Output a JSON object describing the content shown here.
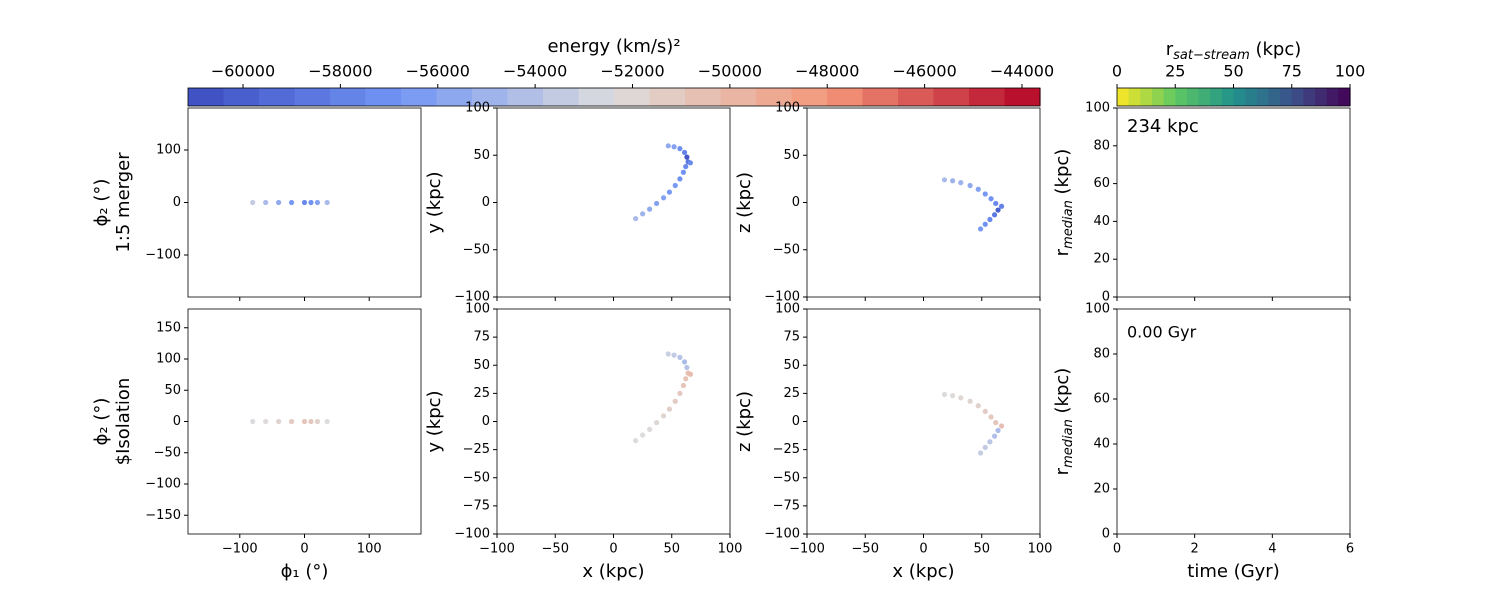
{
  "chart_data": [
    {
      "type": "colorbar",
      "label": "energy (km/s)²",
      "lim": [
        -61130,
        -43630
      ],
      "bands": 24,
      "colormap": [
        "#3b4cc0",
        "#7396f5",
        "#dddddd",
        "#f4987a",
        "#b40426"
      ],
      "ticks": [
        {
          "value": -60000,
          "label": "−60000"
        },
        {
          "value": -58000,
          "label": "−58000"
        },
        {
          "value": -56000,
          "label": "−56000"
        },
        {
          "value": -54000,
          "label": "−54000"
        },
        {
          "value": -52000,
          "label": "−52000"
        },
        {
          "value": -50000,
          "label": "−50000"
        },
        {
          "value": -48000,
          "label": "−48000"
        },
        {
          "value": -46000,
          "label": "−46000"
        },
        {
          "value": -44000,
          "label": "−44000"
        }
      ]
    },
    {
      "type": "colorbar",
      "label_parts": [
        "r",
        "sat−stream",
        " (kpc)"
      ],
      "lim": [
        0,
        100
      ],
      "bands": 20,
      "colormap": [
        "#fde725",
        "#5ec962",
        "#21918c",
        "#3b528b",
        "#440154"
      ],
      "ticks": [
        0,
        25,
        50,
        75,
        100
      ]
    },
    {
      "type": "scatter",
      "ylabel_lines": [
        "ϕ₂ (°)",
        "1:5 merger"
      ],
      "xlim": [
        -180,
        180
      ],
      "ylim": [
        -180,
        180
      ],
      "xticks": [
        {
          "value": -100,
          "label": "−100"
        },
        0,
        100
      ],
      "show_xtick_labels": false,
      "yticks": [
        {
          "value": -100,
          "label": "−100"
        },
        0,
        100
      ],
      "x": [
        -80,
        -60,
        -40,
        -20,
        0,
        10,
        20,
        35
      ],
      "y": [
        0,
        0,
        0,
        0,
        0,
        0,
        0,
        0
      ],
      "c": [
        -53500,
        -54500,
        -55500,
        -56500,
        -57500,
        -57000,
        -56000,
        -54500
      ]
    },
    {
      "type": "scatter",
      "ylabel": "y (kpc)",
      "xlim": [
        -100,
        100
      ],
      "ylim": [
        -100,
        100
      ],
      "xticks": [
        {
          "value": -100,
          "label": "−100"
        },
        {
          "value": -50,
          "label": "−50"
        },
        0,
        50,
        100
      ],
      "show_xtick_labels": false,
      "yticks": [
        {
          "value": -100,
          "label": "−100"
        },
        {
          "value": -50,
          "label": "−50"
        },
        0,
        50,
        100
      ],
      "x": [
        19,
        25,
        31,
        37,
        43,
        48,
        53,
        57,
        60,
        62,
        64,
        66,
        63,
        61,
        57,
        52,
        47
      ],
      "y": [
        -17,
        -12,
        -7,
        -1,
        5,
        11,
        18,
        25,
        32,
        38,
        43,
        42,
        48,
        53,
        57,
        59,
        60
      ],
      "c": [
        -54500,
        -55000,
        -55500,
        -56000,
        -56000,
        -56500,
        -56500,
        -57000,
        -57000,
        -57500,
        -58500,
        -57500,
        -60500,
        -58000,
        -57000,
        -56000,
        -55500
      ]
    },
    {
      "type": "scatter",
      "ylabel": "z (kpc)",
      "xlim": [
        -100,
        100
      ],
      "ylim": [
        -100,
        100
      ],
      "xticks": [
        {
          "value": -100,
          "label": "−100"
        },
        {
          "value": -50,
          "label": "−50"
        },
        0,
        50,
        100
      ],
      "show_xtick_labels": false,
      "yticks": [
        {
          "value": -100,
          "label": "−100"
        },
        {
          "value": -50,
          "label": "−50"
        },
        0,
        50,
        100
      ],
      "x": [
        18,
        25,
        32,
        40,
        47,
        53,
        58,
        62,
        67,
        64,
        61,
        57,
        53,
        49
      ],
      "y": [
        24,
        23,
        21,
        18,
        14,
        9,
        4,
        -1,
        -4,
        -8,
        -13,
        -18,
        -23,
        -28
      ],
      "c": [
        -54500,
        -55000,
        -55000,
        -55500,
        -56000,
        -56500,
        -57000,
        -57500,
        -58000,
        -60000,
        -58500,
        -57500,
        -57000,
        -56500
      ]
    },
    {
      "type": "scatter",
      "ylabel_parts": [
        "r",
        "median",
        " (kpc)"
      ],
      "xlim": [
        0,
        6
      ],
      "ylim": [
        0,
        100
      ],
      "xticks": [
        0,
        2,
        4,
        6
      ],
      "show_xtick_labels": false,
      "yticks": [
        0,
        20,
        40,
        60,
        80,
        100
      ],
      "annotation": "234 kpc",
      "x": [],
      "y": [],
      "c": []
    },
    {
      "type": "scatter",
      "ylabel_lines": [
        "ϕ₂ (°)",
        "$Isolation"
      ],
      "xlabel": "ϕ₁ (°)",
      "xlim": [
        -180,
        180
      ],
      "ylim": [
        -180,
        180
      ],
      "xticks": [
        {
          "value": -100,
          "label": "−100"
        },
        0,
        100
      ],
      "show_xtick_labels": true,
      "yticks": [
        {
          "value": -150,
          "label": "−150"
        },
        {
          "value": -100,
          "label": "−100"
        },
        {
          "value": -50,
          "label": "−50"
        },
        0,
        50,
        100,
        150
      ],
      "x": [
        -80,
        -60,
        -40,
        -20,
        0,
        10,
        20,
        35
      ],
      "y": [
        0,
        0,
        0,
        0,
        0,
        0,
        0,
        0
      ],
      "c": [
        -52500,
        -52200,
        -51800,
        -51200,
        -50800,
        -51000,
        -51600,
        -52400
      ]
    },
    {
      "type": "scatter",
      "ylabel": "y (kpc)",
      "xlabel": "x (kpc)",
      "xlim": [
        -100,
        100
      ],
      "ylim": [
        -100,
        100
      ],
      "xticks": [
        {
          "value": -100,
          "label": "−100"
        },
        {
          "value": -50,
          "label": "−50"
        },
        0,
        50,
        100
      ],
      "show_xtick_labels": true,
      "yticks": [
        {
          "value": -100,
          "label": "−100"
        },
        {
          "value": -75,
          "label": "−75"
        },
        {
          "value": -50,
          "label": "−50"
        },
        {
          "value": -25,
          "label": "−25"
        },
        0,
        25,
        50,
        75,
        100
      ],
      "x": [
        19,
        25,
        31,
        37,
        43,
        48,
        53,
        57,
        60,
        62,
        64,
        66,
        63,
        61,
        57,
        52,
        47
      ],
      "y": [
        -17,
        -12,
        -7,
        -1,
        5,
        11,
        18,
        25,
        32,
        38,
        43,
        42,
        48,
        53,
        57,
        59,
        60
      ],
      "c": [
        -52300,
        -52300,
        -52200,
        -52000,
        -51800,
        -51500,
        -51200,
        -51000,
        -50800,
        -50700,
        -50500,
        -50200,
        -54000,
        -54500,
        -54000,
        -53500,
        -53200
      ]
    },
    {
      "type": "scatter",
      "ylabel": "z (kpc)",
      "xlabel": "x (kpc)",
      "xlim": [
        -100,
        100
      ],
      "ylim": [
        -100,
        100
      ],
      "xticks": [
        {
          "value": -100,
          "label": "−100"
        },
        {
          "value": -50,
          "label": "−50"
        },
        0,
        50,
        100
      ],
      "show_xtick_labels": true,
      "yticks": [
        {
          "value": -100,
          "label": "−100"
        },
        {
          "value": -75,
          "label": "−75"
        },
        {
          "value": -50,
          "label": "−50"
        },
        {
          "value": -25,
          "label": "−25"
        },
        0,
        25,
        50,
        75,
        100
      ],
      "x": [
        18,
        25,
        32,
        40,
        47,
        53,
        58,
        62,
        67,
        64,
        61,
        57,
        53,
        49
      ],
      "y": [
        24,
        23,
        21,
        18,
        14,
        9,
        4,
        -1,
        -4,
        -8,
        -13,
        -18,
        -23,
        -28
      ],
      "c": [
        -52300,
        -52200,
        -52000,
        -51800,
        -51600,
        -51300,
        -51000,
        -50800,
        -50500,
        -54500,
        -54200,
        -53800,
        -53500,
        -53300
      ]
    },
    {
      "type": "scatter",
      "ylabel_parts": [
        "r",
        "median",
        " (kpc)"
      ],
      "xlabel": "time (Gyr)",
      "xlim": [
        0,
        6
      ],
      "ylim": [
        0,
        100
      ],
      "xticks": [
        0,
        2,
        4,
        6
      ],
      "show_xtick_labels": true,
      "yticks": [
        0,
        20,
        40,
        60,
        80,
        100
      ],
      "annotation": "0.00 Gyr",
      "x": [],
      "y": [],
      "c": []
    }
  ]
}
